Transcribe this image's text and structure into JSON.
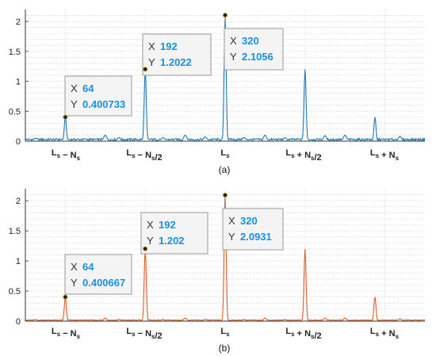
{
  "chart_data": [
    {
      "type": "line",
      "caption": "(a)",
      "color": "#1f77b4",
      "xlim": [
        0,
        448
      ],
      "ylim": [
        0,
        2.2
      ],
      "yticks": [
        "0",
        "0.5",
        "1",
        "1.5",
        "2"
      ],
      "categories": [
        "L_s − N_s",
        "L_s − N_s/2",
        "L_s",
        "L_s + N_s/2",
        "L_s + N_s"
      ],
      "grid": true,
      "peaks": [
        {
          "x": 16,
          "y": 0.05
        },
        {
          "x": 64,
          "y": 0.400733
        },
        {
          "x": 96,
          "y": 0.04
        },
        {
          "x": 128,
          "y": 0.1
        },
        {
          "x": 150,
          "y": 0.06
        },
        {
          "x": 192,
          "y": 1.2022
        },
        {
          "x": 220,
          "y": 0.06
        },
        {
          "x": 256,
          "y": 0.1
        },
        {
          "x": 288,
          "y": 0.07
        },
        {
          "x": 320,
          "y": 2.1056
        },
        {
          "x": 350,
          "y": 0.06
        },
        {
          "x": 384,
          "y": 0.1
        },
        {
          "x": 416,
          "y": 0.06
        },
        {
          "x": 448,
          "y": 1.2
        },
        {
          "x": 480,
          "y": 0.09
        },
        {
          "x": 512,
          "y": 0.1
        },
        {
          "x": 560,
          "y": 0.4
        },
        {
          "x": 600,
          "y": 0.08
        }
      ],
      "datatips": [
        {
          "x_label": "X",
          "x": "64",
          "y_label": "Y",
          "y": "0.400733"
        },
        {
          "x_label": "X",
          "x": "192",
          "y_label": "Y",
          "y": "1.2022"
        },
        {
          "x_label": "X",
          "x": "320",
          "y_label": "Y",
          "y": "2.1056"
        }
      ]
    },
    {
      "type": "line",
      "caption": "(b)",
      "color": "#d95f2b",
      "xlim": [
        0,
        448
      ],
      "ylim": [
        0,
        2.2
      ],
      "yticks": [
        "0",
        "0.5",
        "1",
        "1.5",
        "2"
      ],
      "categories": [
        "L_s − N_s",
        "L_s − N_s/2",
        "L_s",
        "L_s + N_s/2",
        "L_s + N_s"
      ],
      "grid": true,
      "peaks": [
        {
          "x": 16,
          "y": 0.03
        },
        {
          "x": 64,
          "y": 0.400667
        },
        {
          "x": 96,
          "y": 0.02
        },
        {
          "x": 128,
          "y": 0.05
        },
        {
          "x": 150,
          "y": 0.03
        },
        {
          "x": 192,
          "y": 1.202
        },
        {
          "x": 220,
          "y": 0.03
        },
        {
          "x": 256,
          "y": 0.05
        },
        {
          "x": 288,
          "y": 0.03
        },
        {
          "x": 320,
          "y": 2.0931
        },
        {
          "x": 350,
          "y": 0.03
        },
        {
          "x": 384,
          "y": 0.05
        },
        {
          "x": 416,
          "y": 0.03
        },
        {
          "x": 448,
          "y": 1.2
        },
        {
          "x": 480,
          "y": 0.05
        },
        {
          "x": 512,
          "y": 0.05
        },
        {
          "x": 560,
          "y": 0.4
        },
        {
          "x": 600,
          "y": 0.04
        }
      ],
      "datatips": [
        {
          "x_label": "X",
          "x": "64",
          "y_label": "Y",
          "y": "0.400667"
        },
        {
          "x_label": "X",
          "x": "192",
          "y_label": "Y",
          "y": "1.202"
        },
        {
          "x_label": "X",
          "x": "320",
          "y_label": "Y",
          "y": "2.0931"
        }
      ]
    }
  ]
}
